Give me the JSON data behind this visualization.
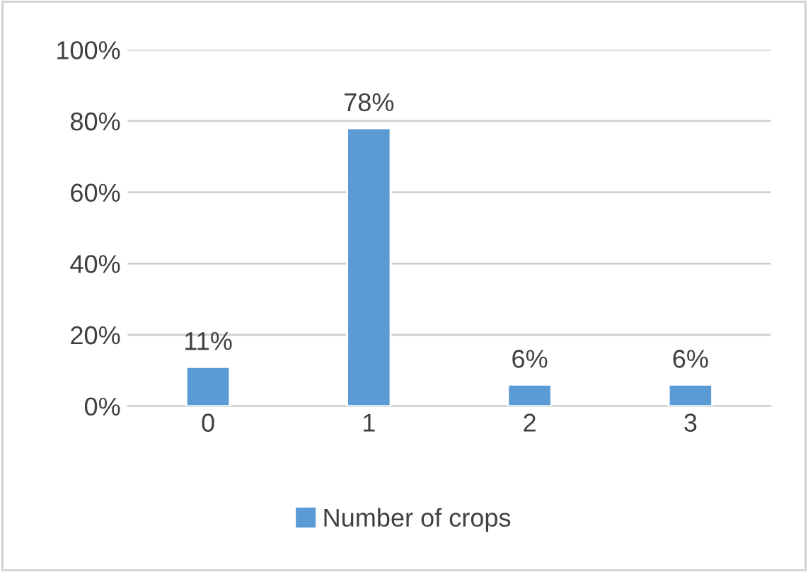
{
  "chart_data": {
    "type": "bar",
    "categories": [
      "0",
      "1",
      "2",
      "3"
    ],
    "series": [
      {
        "name": "Number of crops",
        "color": "#5b9bd5",
        "values": [
          11,
          78,
          6,
          6
        ]
      }
    ],
    "value_labels": [
      "11%",
      "78%",
      "6%",
      "6%"
    ],
    "ylim": [
      0,
      100
    ],
    "yticks": [
      {
        "value": 0,
        "label": "0%"
      },
      {
        "value": 20,
        "label": "20%"
      },
      {
        "value": 40,
        "label": "40%"
      },
      {
        "value": 60,
        "label": "60%"
      },
      {
        "value": 80,
        "label": "80%"
      },
      {
        "value": 100,
        "label": "100%"
      }
    ],
    "grid": "y",
    "legend": "bottom"
  }
}
